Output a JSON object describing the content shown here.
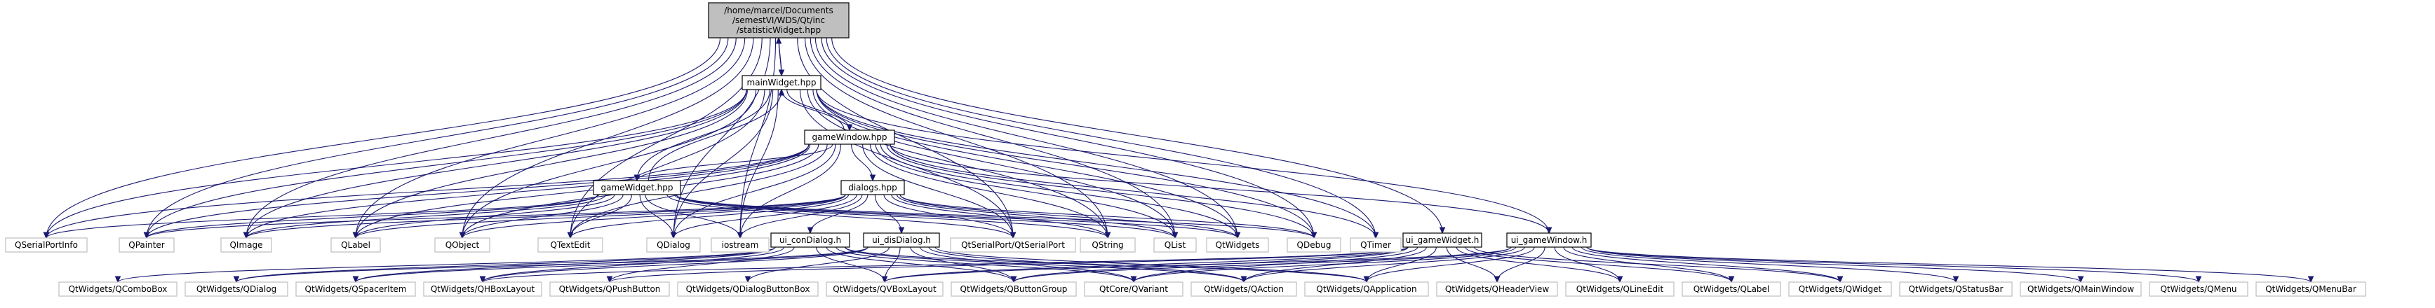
{
  "colors": {
    "edge": "#191970",
    "root_fill": "#bfbfbf",
    "root_stroke": "#000000",
    "file_stroke": "#000000",
    "system_stroke": "#bfbfbf"
  },
  "nodes": [
    {
      "id": "statisticWidget",
      "lines": [
        "/home/marcel/Documents",
        "/semestVI/WDS/Qt/inc",
        "/statisticWidget.hpp"
      ],
      "kind": "root"
    },
    {
      "id": "mainWidget",
      "lines": [
        "mainWidget.hpp"
      ],
      "kind": "file"
    },
    {
      "id": "gameWindow",
      "lines": [
        "gameWindow.hpp"
      ],
      "kind": "file"
    },
    {
      "id": "gameWidget",
      "lines": [
        "gameWidget.hpp"
      ],
      "kind": "file"
    },
    {
      "id": "dialogs",
      "lines": [
        "dialogs.hpp"
      ],
      "kind": "file"
    },
    {
      "id": "ui_gameWidget",
      "lines": [
        "ui_gameWidget.h"
      ],
      "kind": "file"
    },
    {
      "id": "ui_gameWindow",
      "lines": [
        "ui_gameWindow.h"
      ],
      "kind": "file"
    },
    {
      "id": "ui_conDialog",
      "lines": [
        "ui_conDialog.h"
      ],
      "kind": "file"
    },
    {
      "id": "ui_disDialog",
      "lines": [
        "ui_disDialog.h"
      ],
      "kind": "file"
    },
    {
      "id": "QSerialPortInfo",
      "lines": [
        "QSerialPortInfo"
      ],
      "kind": "system"
    },
    {
      "id": "QPainter",
      "lines": [
        "QPainter"
      ],
      "kind": "system"
    },
    {
      "id": "QImage",
      "lines": [
        "QImage"
      ],
      "kind": "system"
    },
    {
      "id": "QLabel",
      "lines": [
        "QLabel"
      ],
      "kind": "system"
    },
    {
      "id": "QObject",
      "lines": [
        "QObject"
      ],
      "kind": "system"
    },
    {
      "id": "QTextEdit",
      "lines": [
        "QTextEdit"
      ],
      "kind": "system"
    },
    {
      "id": "QDialog",
      "lines": [
        "QDialog"
      ],
      "kind": "system"
    },
    {
      "id": "iostream",
      "lines": [
        "iostream"
      ],
      "kind": "system"
    },
    {
      "id": "QtSerialPort",
      "lines": [
        "QtSerialPort/QtSerialPort"
      ],
      "kind": "system"
    },
    {
      "id": "QString",
      "lines": [
        "QString"
      ],
      "kind": "system"
    },
    {
      "id": "QList",
      "lines": [
        "QList"
      ],
      "kind": "system"
    },
    {
      "id": "QtWidgets",
      "lines": [
        "QtWidgets"
      ],
      "kind": "system"
    },
    {
      "id": "QDebug",
      "lines": [
        "QDebug"
      ],
      "kind": "system"
    },
    {
      "id": "QTimer",
      "lines": [
        "QTimer"
      ],
      "kind": "system"
    },
    {
      "id": "QComboBox",
      "lines": [
        "QtWidgets/QComboBox"
      ],
      "kind": "system"
    },
    {
      "id": "QtwQDialog",
      "lines": [
        "QtWidgets/QDialog"
      ],
      "kind": "system"
    },
    {
      "id": "QSpacerItem",
      "lines": [
        "QtWidgets/QSpacerItem"
      ],
      "kind": "system"
    },
    {
      "id": "QHBoxLayout",
      "lines": [
        "QtWidgets/QHBoxLayout"
      ],
      "kind": "system"
    },
    {
      "id": "QPushButton",
      "lines": [
        "QtWidgets/QPushButton"
      ],
      "kind": "system"
    },
    {
      "id": "QDialogButtonBox",
      "lines": [
        "QtWidgets/QDialogButtonBox"
      ],
      "kind": "system"
    },
    {
      "id": "QVBoxLayout",
      "lines": [
        "QtWidgets/QVBoxLayout"
      ],
      "kind": "system"
    },
    {
      "id": "QButtonGroup",
      "lines": [
        "QtWidgets/QButtonGroup"
      ],
      "kind": "system"
    },
    {
      "id": "QVariant",
      "lines": [
        "QtCore/QVariant"
      ],
      "kind": "system"
    },
    {
      "id": "QAction",
      "lines": [
        "QtWidgets/QAction"
      ],
      "kind": "system"
    },
    {
      "id": "QApplication",
      "lines": [
        "QtWidgets/QApplication"
      ],
      "kind": "system"
    },
    {
      "id": "QHeaderView",
      "lines": [
        "QtWidgets/QHeaderView"
      ],
      "kind": "system"
    },
    {
      "id": "QLineEdit",
      "lines": [
        "QtWidgets/QLineEdit"
      ],
      "kind": "system"
    },
    {
      "id": "QtwQLabel",
      "lines": [
        "QtWidgets/QLabel"
      ],
      "kind": "system"
    },
    {
      "id": "QWidget",
      "lines": [
        "QtWidgets/QWidget"
      ],
      "kind": "system"
    },
    {
      "id": "QStatusBar",
      "lines": [
        "QtWidgets/QStatusBar"
      ],
      "kind": "system"
    },
    {
      "id": "QMainWindow",
      "lines": [
        "QtWidgets/QMainWindow"
      ],
      "kind": "system"
    },
    {
      "id": "QMenu",
      "lines": [
        "QtWidgets/QMenu"
      ],
      "kind": "system"
    },
    {
      "id": "QMenuBar",
      "lines": [
        "QtWidgets/QMenuBar"
      ],
      "kind": "system"
    }
  ],
  "edges": [
    [
      "statisticWidget",
      "mainWidget"
    ],
    [
      "statisticWidget",
      "QSerialPortInfo"
    ],
    [
      "statisticWidget",
      "QPainter"
    ],
    [
      "statisticWidget",
      "QImage"
    ],
    [
      "statisticWidget",
      "QLabel"
    ],
    [
      "statisticWidget",
      "QObject"
    ],
    [
      "statisticWidget",
      "QTextEdit"
    ],
    [
      "statisticWidget",
      "QDialog"
    ],
    [
      "statisticWidget",
      "iostream"
    ],
    [
      "statisticWidget",
      "QtSerialPort"
    ],
    [
      "statisticWidget",
      "QString"
    ],
    [
      "statisticWidget",
      "QList"
    ],
    [
      "statisticWidget",
      "QtWidgets"
    ],
    [
      "statisticWidget",
      "QDebug"
    ],
    [
      "statisticWidget",
      "QTimer"
    ],
    [
      "statisticWidget",
      "ui_gameWidget"
    ],
    [
      "mainWidget",
      "statisticWidget"
    ],
    [
      "mainWidget",
      "gameWindow"
    ],
    [
      "mainWidget",
      "gameWidget"
    ],
    [
      "mainWidget",
      "QSerialPortInfo"
    ],
    [
      "mainWidget",
      "QPainter"
    ],
    [
      "mainWidget",
      "QImage"
    ],
    [
      "mainWidget",
      "QLabel"
    ],
    [
      "mainWidget",
      "QObject"
    ],
    [
      "mainWidget",
      "QTextEdit"
    ],
    [
      "mainWidget",
      "QDialog"
    ],
    [
      "mainWidget",
      "iostream"
    ],
    [
      "mainWidget",
      "QtSerialPort"
    ],
    [
      "mainWidget",
      "QString"
    ],
    [
      "mainWidget",
      "QList"
    ],
    [
      "mainWidget",
      "QtWidgets"
    ],
    [
      "mainWidget",
      "QDebug"
    ],
    [
      "mainWidget",
      "QTimer"
    ],
    [
      "mainWidget",
      "ui_gameWindow"
    ],
    [
      "gameWindow",
      "mainWidget"
    ],
    [
      "gameWindow",
      "gameWidget"
    ],
    [
      "gameWindow",
      "dialogs"
    ],
    [
      "gameWindow",
      "QSerialPortInfo"
    ],
    [
      "gameWindow",
      "QPainter"
    ],
    [
      "gameWindow",
      "QImage"
    ],
    [
      "gameWindow",
      "QLabel"
    ],
    [
      "gameWindow",
      "QObject"
    ],
    [
      "gameWindow",
      "QTextEdit"
    ],
    [
      "gameWindow",
      "QDialog"
    ],
    [
      "gameWindow",
      "iostream"
    ],
    [
      "gameWindow",
      "QtSerialPort"
    ],
    [
      "gameWindow",
      "QString"
    ],
    [
      "gameWindow",
      "QList"
    ],
    [
      "gameWindow",
      "QtWidgets"
    ],
    [
      "gameWindow",
      "QDebug"
    ],
    [
      "gameWindow",
      "QTimer"
    ],
    [
      "gameWindow",
      "ui_gameWindow"
    ],
    [
      "gameWidget",
      "mainWidget"
    ],
    [
      "gameWidget",
      "QSerialPortInfo"
    ],
    [
      "gameWidget",
      "QPainter"
    ],
    [
      "gameWidget",
      "QImage"
    ],
    [
      "gameWidget",
      "QLabel"
    ],
    [
      "gameWidget",
      "QObject"
    ],
    [
      "gameWidget",
      "QTextEdit"
    ],
    [
      "gameWidget",
      "QDialog"
    ],
    [
      "gameWidget",
      "iostream"
    ],
    [
      "gameWidget",
      "QtSerialPort"
    ],
    [
      "gameWidget",
      "QString"
    ],
    [
      "gameWidget",
      "QList"
    ],
    [
      "gameWidget",
      "QtWidgets"
    ],
    [
      "gameWidget",
      "QDebug"
    ],
    [
      "dialogs",
      "QPainter"
    ],
    [
      "dialogs",
      "QImage"
    ],
    [
      "dialogs",
      "QLabel"
    ],
    [
      "dialogs",
      "QObject"
    ],
    [
      "dialogs",
      "QTextEdit"
    ],
    [
      "dialogs",
      "QDialog"
    ],
    [
      "dialogs",
      "iostream"
    ],
    [
      "dialogs",
      "QtSerialPort"
    ],
    [
      "dialogs",
      "QString"
    ],
    [
      "dialogs",
      "QList"
    ],
    [
      "dialogs",
      "QtWidgets"
    ],
    [
      "dialogs",
      "QDebug"
    ],
    [
      "dialogs",
      "ui_conDialog"
    ],
    [
      "dialogs",
      "ui_disDialog"
    ],
    [
      "ui_conDialog",
      "QComboBox"
    ],
    [
      "ui_conDialog",
      "QtwQDialog"
    ],
    [
      "ui_conDialog",
      "QSpacerItem"
    ],
    [
      "ui_conDialog",
      "QHBoxLayout"
    ],
    [
      "ui_conDialog",
      "QPushButton"
    ],
    [
      "ui_conDialog",
      "QVBoxLayout"
    ],
    [
      "ui_conDialog",
      "QButtonGroup"
    ],
    [
      "ui_conDialog",
      "QVariant"
    ],
    [
      "ui_conDialog",
      "QAction"
    ],
    [
      "ui_conDialog",
      "QApplication"
    ],
    [
      "ui_disDialog",
      "QtwQDialog"
    ],
    [
      "ui_disDialog",
      "QSpacerItem"
    ],
    [
      "ui_disDialog",
      "QHBoxLayout"
    ],
    [
      "ui_disDialog",
      "QDialogButtonBox"
    ],
    [
      "ui_disDialog",
      "QVBoxLayout"
    ],
    [
      "ui_disDialog",
      "QButtonGroup"
    ],
    [
      "ui_disDialog",
      "QVariant"
    ],
    [
      "ui_disDialog",
      "QAction"
    ],
    [
      "ui_disDialog",
      "QApplication"
    ],
    [
      "ui_gameWidget",
      "QHBoxLayout"
    ],
    [
      "ui_gameWidget",
      "QPushButton"
    ],
    [
      "ui_gameWidget",
      "QVBoxLayout"
    ],
    [
      "ui_gameWidget",
      "QButtonGroup"
    ],
    [
      "ui_gameWidget",
      "QVariant"
    ],
    [
      "ui_gameWidget",
      "QAction"
    ],
    [
      "ui_gameWidget",
      "QApplication"
    ],
    [
      "ui_gameWidget",
      "QHeaderView"
    ],
    [
      "ui_gameWidget",
      "QLineEdit"
    ],
    [
      "ui_gameWidget",
      "QtwQLabel"
    ],
    [
      "ui_gameWidget",
      "QWidget"
    ],
    [
      "ui_gameWindow",
      "QVBoxLayout"
    ],
    [
      "ui_gameWindow",
      "QButtonGroup"
    ],
    [
      "ui_gameWindow",
      "QVariant"
    ],
    [
      "ui_gameWindow",
      "QAction"
    ],
    [
      "ui_gameWindow",
      "QApplication"
    ],
    [
      "ui_gameWindow",
      "QHeaderView"
    ],
    [
      "ui_gameWindow",
      "QLineEdit"
    ],
    [
      "ui_gameWindow",
      "QtwQLabel"
    ],
    [
      "ui_gameWindow",
      "QWidget"
    ],
    [
      "ui_gameWindow",
      "QStatusBar"
    ],
    [
      "ui_gameWindow",
      "QMainWindow"
    ],
    [
      "ui_gameWindow",
      "QMenu"
    ],
    [
      "ui_gameWindow",
      "QMenuBar"
    ]
  ]
}
